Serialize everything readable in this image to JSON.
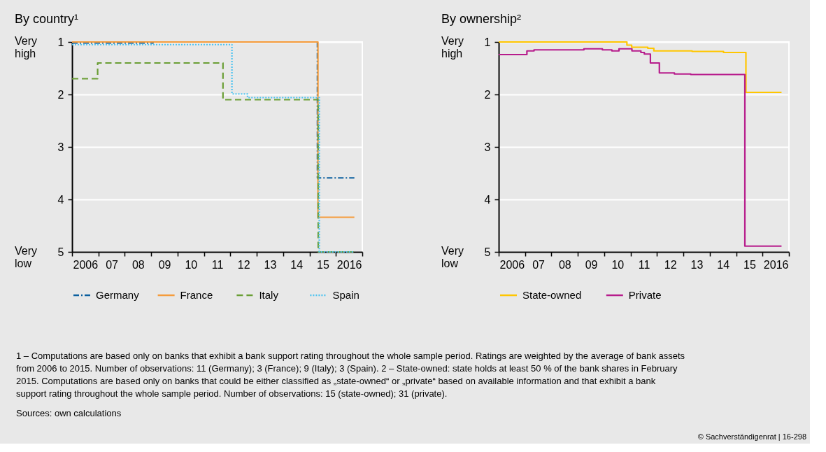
{
  "chart_data": [
    {
      "type": "step",
      "title": "By country¹",
      "xlim": [
        2005.5,
        2016.5
      ],
      "ylim": [
        5,
        1
      ],
      "yticks": [
        1,
        2,
        3,
        4,
        5
      ],
      "grid": "y",
      "legend": "bottom",
      "xticks": [
        {
          "value": 2006,
          "label": "2006"
        },
        {
          "value": 2007,
          "label": "07"
        },
        {
          "value": 2008,
          "label": "08"
        },
        {
          "value": 2009,
          "label": "09"
        },
        {
          "value": 2010,
          "label": "10"
        },
        {
          "value": 2011,
          "label": "11"
        },
        {
          "value": 2012,
          "label": "12"
        },
        {
          "value": 2013,
          "label": "13"
        },
        {
          "value": 2014,
          "label": "14"
        },
        {
          "value": 2015,
          "label": "15"
        },
        {
          "value": 2016,
          "label": "2016"
        },
        {
          "value": 2005.5,
          "label": null
        },
        {
          "value": 2006.5,
          "label": null
        },
        {
          "value": 2007.5,
          "label": null
        },
        {
          "value": 2008.5,
          "label": null
        },
        {
          "value": 2009.5,
          "label": null
        },
        {
          "value": 2010.5,
          "label": null
        },
        {
          "value": 2011.5,
          "label": null
        },
        {
          "value": 2012.5,
          "label": null
        },
        {
          "value": 2013.5,
          "label": null
        },
        {
          "value": 2014.5,
          "label": null
        },
        {
          "value": 2015.5,
          "label": null
        },
        {
          "value": 2016.5,
          "label": null
        }
      ],
      "series": [
        {
          "name": "Germany",
          "color": "#0b5f9e",
          "line_style": "dashdot",
          "x": [
            2005.5,
            2008.57,
            2014.8,
            2016.2
          ],
          "values": [
            1.02,
            1.0,
            3.59,
            3.59
          ]
        },
        {
          "name": "France",
          "color": "#f59c3c",
          "line_style": "solid",
          "x": [
            2005.5,
            2014.8,
            2014.82,
            2016.2
          ],
          "values": [
            1.0,
            1.0,
            4.34,
            4.34
          ]
        },
        {
          "name": "Italy",
          "color": "#6a9e35",
          "line_style": "dashed",
          "x": [
            2005.5,
            2006.47,
            2011.22,
            2014.83,
            2016.2
          ],
          "values": [
            1.7,
            1.4,
            2.1,
            5.0,
            5.0
          ]
        },
        {
          "name": "Spain",
          "color": "#4dc3f0",
          "line_style": "dotted",
          "x": [
            2005.5,
            2011.56,
            2012.15,
            2014.87,
            2016.2
          ],
          "values": [
            1.05,
            1.99,
            2.06,
            5.0,
            5.0
          ]
        }
      ],
      "annotations": [
        "Very high",
        "Very low"
      ]
    },
    {
      "type": "step",
      "title": "By ownership²",
      "xlim": [
        2005.5,
        2016.5
      ],
      "ylim": [
        5,
        1
      ],
      "yticks": [
        1,
        2,
        3,
        4,
        5
      ],
      "grid": "y",
      "legend": "bottom",
      "xticks": [
        {
          "value": 2006,
          "label": "2006"
        },
        {
          "value": 2007,
          "label": "07"
        },
        {
          "value": 2008,
          "label": "08"
        },
        {
          "value": 2009,
          "label": "09"
        },
        {
          "value": 2010,
          "label": "10"
        },
        {
          "value": 2011,
          "label": "11"
        },
        {
          "value": 2012,
          "label": "12"
        },
        {
          "value": 2013,
          "label": "13"
        },
        {
          "value": 2014,
          "label": "14"
        },
        {
          "value": 2015,
          "label": "15"
        },
        {
          "value": 2016,
          "label": "2016"
        },
        {
          "value": 2005.5,
          "label": null
        },
        {
          "value": 2006.5,
          "label": null
        },
        {
          "value": 2007.5,
          "label": null
        },
        {
          "value": 2008.5,
          "label": null
        },
        {
          "value": 2009.5,
          "label": null
        },
        {
          "value": 2010.5,
          "label": null
        },
        {
          "value": 2011.5,
          "label": null
        },
        {
          "value": 2012.5,
          "label": null
        },
        {
          "value": 2013.5,
          "label": null
        },
        {
          "value": 2014.5,
          "label": null
        },
        {
          "value": 2015.5,
          "label": null
        },
        {
          "value": 2016.5,
          "label": null
        }
      ],
      "series": [
        {
          "name": "State-owned",
          "color": "#ffc600",
          "line_style": "solid",
          "x": [
            2005.5,
            2010.36,
            2010.54,
            2011.15,
            2011.38,
            2012.83,
            2014.02,
            2014.87,
            2016.22
          ],
          "values": [
            1.0,
            1.06,
            1.1,
            1.12,
            1.17,
            1.18,
            1.2,
            1.96,
            1.96
          ]
        },
        {
          "name": "Private",
          "color": "#b71c8c",
          "line_style": "solid",
          "x": [
            2005.5,
            2006.57,
            2006.84,
            2008.73,
            2009.43,
            2009.79,
            2010.06,
            2010.55,
            2010.89,
            2011.02,
            2011.25,
            2011.59,
            2012.16,
            2012.78,
            2014.83,
            2016.22
          ],
          "values": [
            1.24,
            1.17,
            1.15,
            1.13,
            1.15,
            1.17,
            1.13,
            1.17,
            1.2,
            1.23,
            1.4,
            1.59,
            1.61,
            1.62,
            4.89,
            4.89
          ]
        }
      ],
      "annotations": [
        "Very high",
        "Very low",
        "1 – Computations are based only on banks that exhibit a bank support rating throughout the whole sample period. Ratings are weighted by the average of bank assets from 2006 to 2015. Number of observations: 11 (Germany); 3 (France); 9 (Italy); 3 (Spain).  2 – State-owned: state holds at least 50 % of the bank shares in February 2015. Computations are based only on banks that could be either classified as „state-owned“ or „private“ based on available information and that exhibit a bank support rating throughout the whole sample period. Number of observations: 15 (state-owned); 31 (private).",
        "Sources: own calculations",
        "© Sachverständigenrat | 16-298"
      ]
    }
  ]
}
